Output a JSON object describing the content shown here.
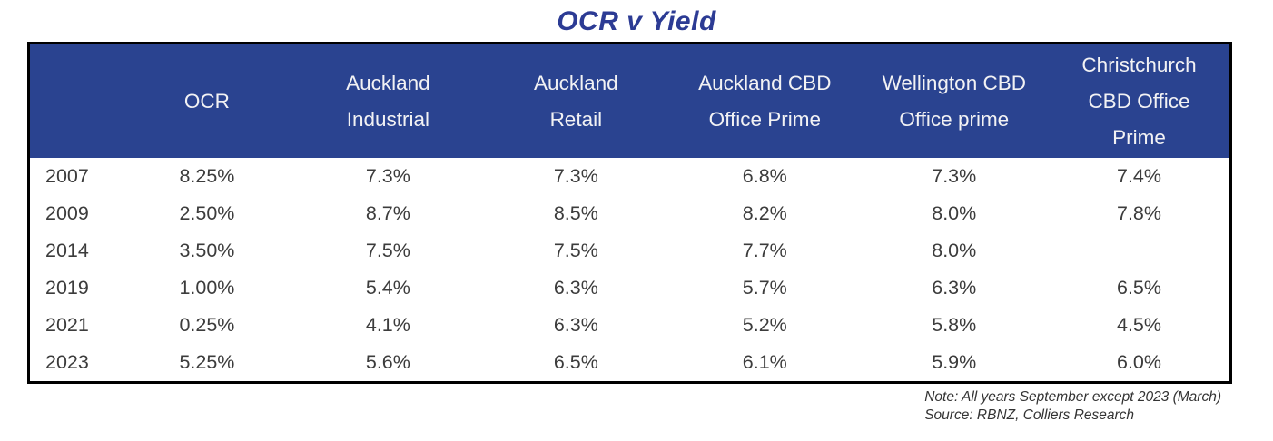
{
  "title": "OCR v Yield",
  "table": {
    "columns": [
      "",
      "OCR",
      "Auckland\nIndustrial",
      "Auckland\nRetail",
      "Auckland CBD\nOffice Prime",
      "Wellington CBD\nOffice prime",
      "Christchurch\nCBD Office\nPrime"
    ],
    "rows": [
      {
        "year": "2007",
        "values": [
          "8.25%",
          "7.3%",
          "7.3%",
          "6.8%",
          "7.3%",
          "7.4%"
        ]
      },
      {
        "year": "2009",
        "values": [
          "2.50%",
          "8.7%",
          "8.5%",
          "8.2%",
          "8.0%",
          "7.8%"
        ]
      },
      {
        "year": "2014",
        "values": [
          "3.50%",
          "7.5%",
          "7.5%",
          "7.7%",
          "8.0%",
          ""
        ]
      },
      {
        "year": "2019",
        "values": [
          "1.00%",
          "5.4%",
          "6.3%",
          "5.7%",
          "6.3%",
          "6.5%"
        ]
      },
      {
        "year": "2021",
        "values": [
          "0.25%",
          "4.1%",
          "6.3%",
          "5.2%",
          "5.8%",
          "4.5%"
        ]
      },
      {
        "year": "2023",
        "values": [
          "5.25%",
          "5.6%",
          "6.5%",
          "6.1%",
          "5.9%",
          "6.0%"
        ]
      }
    ]
  },
  "notes": {
    "note": "Note: All years September except 2023 (March)",
    "source": "Source: RBNZ, Colliers Research"
  },
  "colors": {
    "header_bg": "#2a4390",
    "header_text": "#f2f2f4",
    "title_color": "#2c3b94",
    "body_text": "#3c3c3c",
    "note_text": "#333333",
    "border_color": "#000000"
  },
  "chart_data": {
    "type": "table",
    "title": "OCR v Yield",
    "categories": [
      "2007",
      "2009",
      "2014",
      "2019",
      "2021",
      "2023"
    ],
    "series": [
      {
        "name": "OCR",
        "values": [
          "8.25%",
          "2.50%",
          "3.50%",
          "1.00%",
          "0.25%",
          "5.25%"
        ]
      },
      {
        "name": "Auckland Industrial",
        "values": [
          "7.3%",
          "8.7%",
          "7.5%",
          "5.4%",
          "4.1%",
          "5.6%"
        ]
      },
      {
        "name": "Auckland Retail",
        "values": [
          "7.3%",
          "8.5%",
          "7.5%",
          "6.3%",
          "6.3%",
          "6.5%"
        ]
      },
      {
        "name": "Auckland CBD Office Prime",
        "values": [
          "6.8%",
          "8.2%",
          "7.7%",
          "5.7%",
          "5.2%",
          "6.1%"
        ]
      },
      {
        "name": "Wellington CBD Office prime",
        "values": [
          "7.3%",
          "8.0%",
          "8.0%",
          "6.3%",
          "5.8%",
          "5.9%"
        ]
      },
      {
        "name": "Christchurch CBD Office Prime",
        "values": [
          "7.4%",
          "7.8%",
          "",
          "6.5%",
          "4.5%",
          "6.0%"
        ]
      }
    ],
    "notes": [
      "Note: All years September except 2023 (March)",
      "Source: RBNZ, Colliers Research"
    ]
  }
}
